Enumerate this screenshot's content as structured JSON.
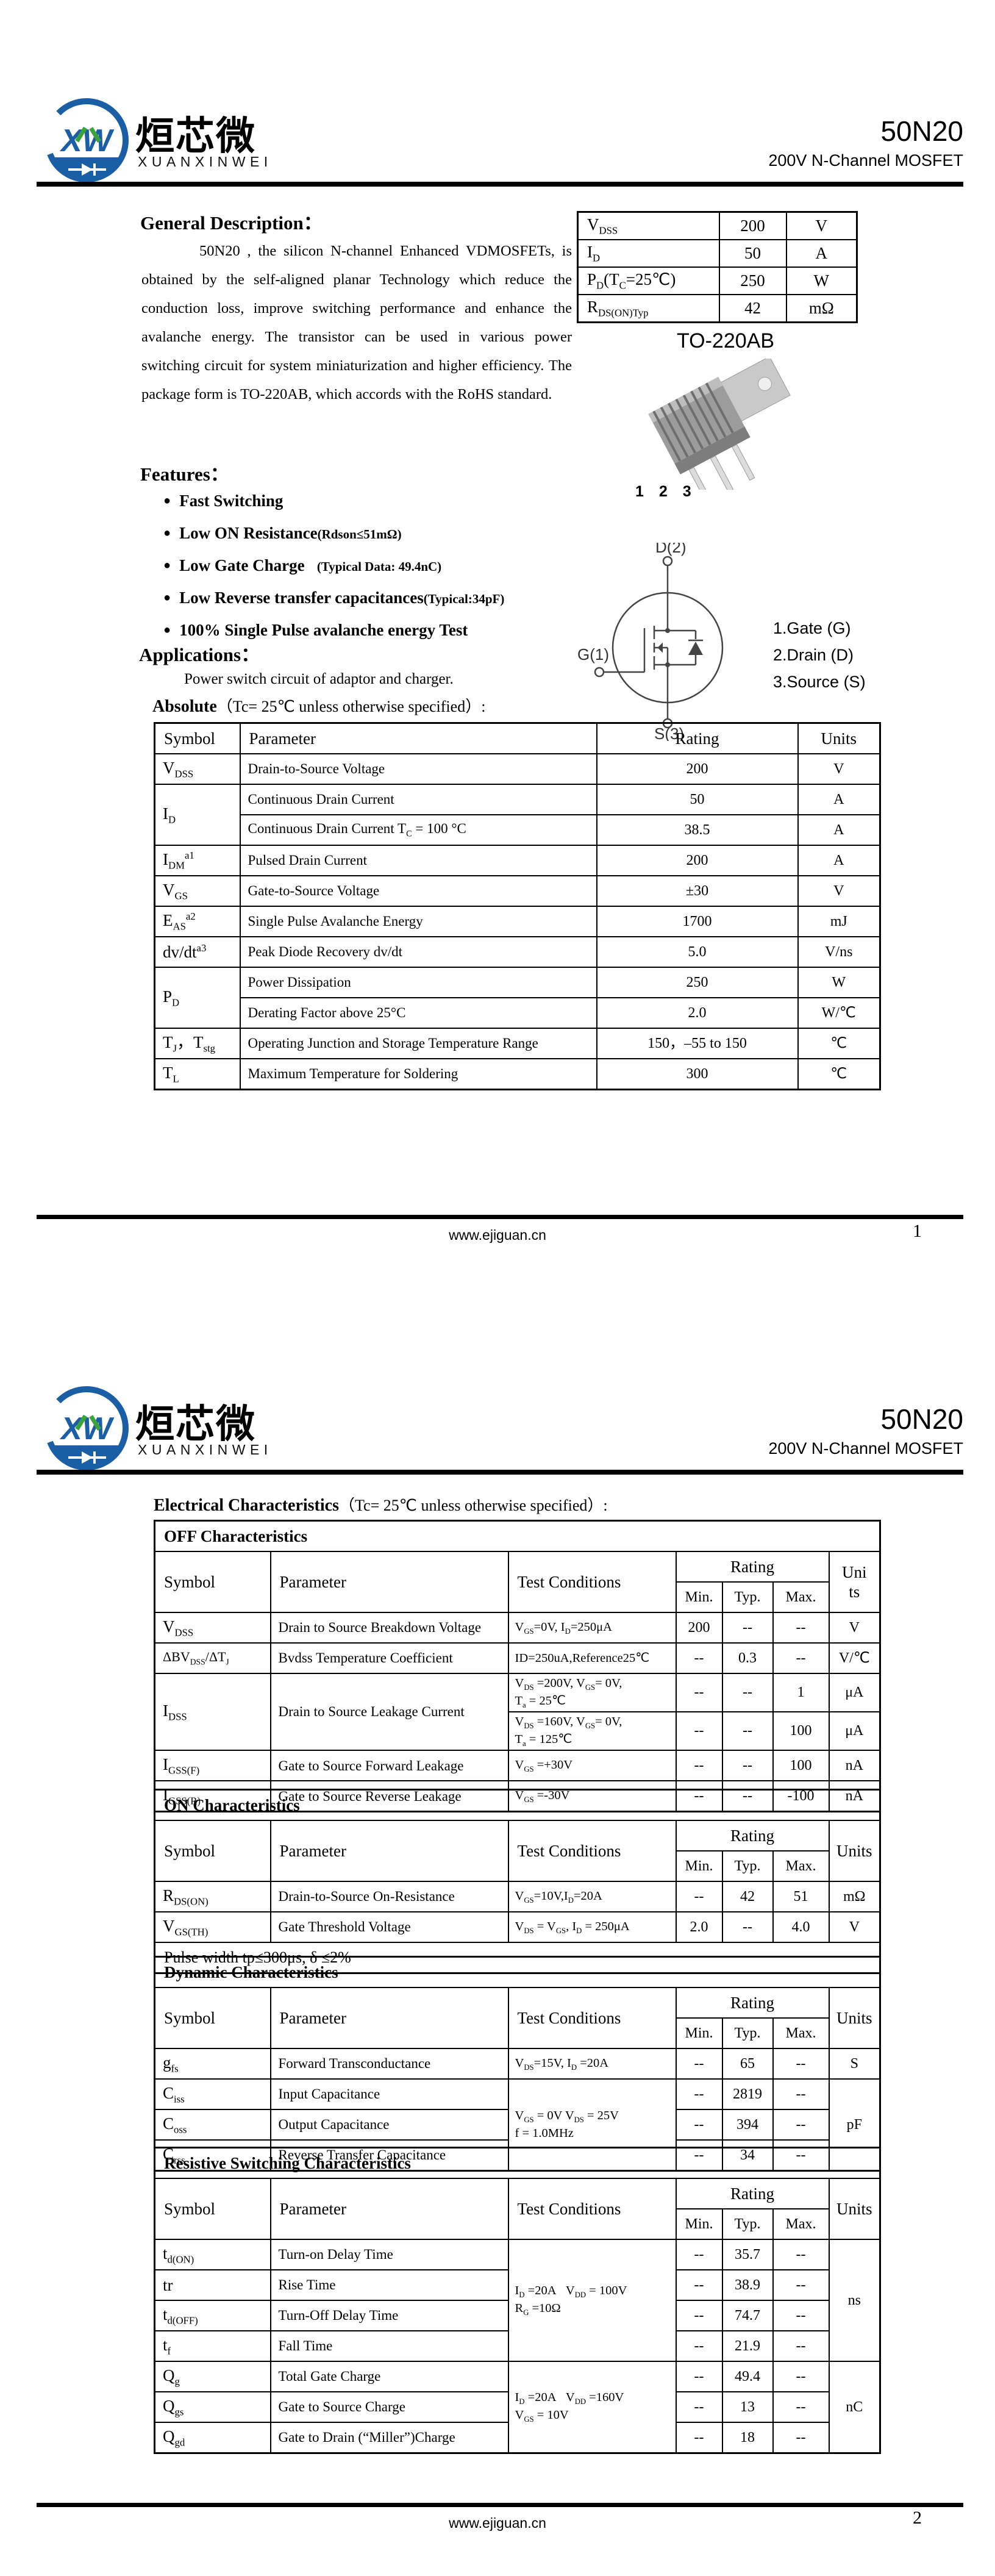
{
  "header": {
    "part": "50N20",
    "subtitle": "200V N-Channel MOSFET",
    "brand_zh": "烜芯微",
    "brand_en": "XUANXINWEI",
    "logo_monogram": "XW"
  },
  "footer": {
    "url": "www.ejiguan.cn",
    "page1": "1",
    "page2": "2"
  },
  "page1": {
    "general": {
      "title": "General Description：",
      "body": "50N20 , the silicon N-channel Enhanced VDMOSFETs, is obtained by the self-aligned planar Technology which reduce the conduction loss, improve switching performance and enhance the avalanche energy. The transistor can be used in various power switching circuit for system miniaturization and higher efficiency. The package form is TO-220AB, which accords with the RoHS standard."
    },
    "quick_specs": [
      [
        {
          "t": "V<sub>DSS</sub>",
          "c": "ql"
        },
        {
          "t": "200"
        },
        {
          "t": "V"
        }
      ],
      [
        {
          "t": "I<sub>D</sub>",
          "c": "ql"
        },
        {
          "t": "50"
        },
        {
          "t": "A"
        }
      ],
      [
        {
          "t": "P<sub>D</sub>(T<sub>C</sub>=25℃)",
          "c": "ql"
        },
        {
          "t": "250"
        },
        {
          "t": "W"
        }
      ],
      [
        {
          "t": "R<sub>DS(ON)Typ</sub>",
          "c": "ql"
        },
        {
          "t": "42"
        },
        {
          "t": "mΩ"
        }
      ]
    ],
    "features": {
      "title": "Features：",
      "items": [
        "Fast Switching",
        "Low ON Resistance<span class=\"fsm\">(Rdson≤51mΩ)</span>",
        "Low Gate Charge&nbsp;&nbsp;&nbsp;<span class=\"fsm\">(Typical Data: 49.4nC)</span>",
        "Low Reverse transfer capacitances<span class=\"fsm\">(Typical:34pF)</span>",
        "100% Single Pulse avalanche energy Test"
      ]
    },
    "applications": {
      "title": "Applications：",
      "body": "Power switch circuit of adaptor and charger."
    },
    "package": {
      "title": "TO-220AB",
      "pins": "1 2 3",
      "sym_d": "D(2)",
      "sym_g": "G(1)",
      "sym_s": "S(3)",
      "legend": [
        "1.Gate (G)",
        "2.Drain (D)",
        "3.Source (S)"
      ]
    },
    "absolute": {
      "title_html": "<b>Absolute</b>（Tc= 25℃  unless otherwise specified）:",
      "rows": [
        [
          {
            "t": "Symbol",
            "c": "hd hl"
          },
          {
            "t": "Parameter",
            "c": "hd hl"
          },
          {
            "t": "Rating",
            "c": "hd"
          },
          {
            "t": "Units",
            "c": "hd"
          }
        ],
        [
          {
            "t": "V<sub>DSS</sub>",
            "c": "sym"
          },
          {
            "t": "Drain-to-Source Voltage",
            "c": "par"
          },
          {
            "t": "200"
          },
          {
            "t": "V"
          }
        ],
        [
          {
            "t": "I<sub>D</sub>",
            "c": "sym",
            "rs": 2
          },
          {
            "t": "Continuous Drain Current",
            "c": "par"
          },
          {
            "t": "50"
          },
          {
            "t": "A"
          }
        ],
        [
          {
            "t": "Continuous Drain Current T<sub>C</sub> = 100 °C",
            "c": "par"
          },
          {
            "t": "38.5"
          },
          {
            "t": "A"
          }
        ],
        [
          {
            "t": "I<sub>DM</sub><sup>a1</sup>",
            "c": "sym"
          },
          {
            "t": "Pulsed Drain Current",
            "c": "par"
          },
          {
            "t": "200"
          },
          {
            "t": "A"
          }
        ],
        [
          {
            "t": "V<sub>GS</sub>",
            "c": "sym"
          },
          {
            "t": "Gate-to-Source Voltage",
            "c": "par"
          },
          {
            "t": "±30"
          },
          {
            "t": "V"
          }
        ],
        [
          {
            "t": "E<sub>AS</sub><sup>a2</sup>",
            "c": "sym"
          },
          {
            "t": "Single Pulse Avalanche Energy",
            "c": "par"
          },
          {
            "t": "1700"
          },
          {
            "t": "mJ"
          }
        ],
        [
          {
            "t": "dv/dt<sup>a3</sup>",
            "c": "sym"
          },
          {
            "t": "Peak Diode Recovery dv/dt",
            "c": "par"
          },
          {
            "t": "5.0"
          },
          {
            "t": "V/ns"
          }
        ],
        [
          {
            "t": "P<sub>D</sub>",
            "c": "sym",
            "rs": 2
          },
          {
            "t": "Power Dissipation",
            "c": "par"
          },
          {
            "t": "250"
          },
          {
            "t": "W"
          }
        ],
        [
          {
            "t": "Derating Factor above 25°C",
            "c": "par"
          },
          {
            "t": "2.0"
          },
          {
            "t": "W/℃"
          }
        ],
        [
          {
            "t": "T<sub>J</sub>，T<sub>stg</sub>",
            "c": "sym"
          },
          {
            "t": "Operating Junction and Storage Temperature Range",
            "c": "par"
          },
          {
            "t": "150，–55 to 150"
          },
          {
            "t": "℃"
          }
        ],
        [
          {
            "t": "T<sub>L</sub>",
            "c": "sym"
          },
          {
            "t": "Maximum Temperature for Soldering",
            "c": "par"
          },
          {
            "t": "300"
          },
          {
            "t": "℃"
          }
        ]
      ]
    }
  },
  "page2": {
    "elec_title_html": "<b>Electrical Characteristics</b>（Tc= 25℃  unless otherwise specified）:",
    "off": {
      "rows": [
        [
          {
            "t": "OFF Characteristics",
            "c": "ttl",
            "cs": 7
          }
        ],
        [
          {
            "t": "Symbol",
            "c": "hd hl",
            "rs": 2
          },
          {
            "t": "Parameter",
            "c": "hd hl",
            "rs": 2
          },
          {
            "t": "Test Conditions",
            "c": "hd hl",
            "rs": 2
          },
          {
            "t": "Rating",
            "c": "hd",
            "cs": 3
          },
          {
            "t": "Units",
            "c": "hd wrapU",
            "rs": 2
          }
        ],
        [
          {
            "t": "Min.",
            "c": "hd2"
          },
          {
            "t": "Typ.",
            "c": "hd2"
          },
          {
            "t": "Max.",
            "c": "hd2"
          }
        ],
        [
          {
            "t": "V<sub>DSS</sub>",
            "c": "sym"
          },
          {
            "t": "Drain to Source Breakdown Voltage",
            "c": "par"
          },
          {
            "t": "V<sub>GS</sub>=0V, I<sub>D</sub>=250μA",
            "c": "tc"
          },
          {
            "t": "200"
          },
          {
            "t": "--"
          },
          {
            "t": "--"
          },
          {
            "t": "V"
          }
        ],
        [
          {
            "t": "ΔBV<sub>DSS</sub>/ΔT<sub>J</sub>",
            "c": "sym sm"
          },
          {
            "t": "Bvdss Temperature Coefficient",
            "c": "par"
          },
          {
            "t": "ID=250uA,Reference25℃",
            "c": "tc"
          },
          {
            "t": "--"
          },
          {
            "t": "0.3"
          },
          {
            "t": "--"
          },
          {
            "t": "V/℃"
          }
        ],
        [
          {
            "t": "I<sub>DSS</sub>",
            "c": "sym",
            "rs": 2
          },
          {
            "t": "Drain to Source Leakage Current",
            "c": "par",
            "rs": 2
          },
          {
            "t": "V<sub>DS</sub> =200V, V<sub>GS</sub>= 0V,<br>T<sub>a</sub> = 25℃",
            "c": "tc"
          },
          {
            "t": "--"
          },
          {
            "t": "--"
          },
          {
            "t": "1"
          },
          {
            "t": "μA"
          }
        ],
        [
          {
            "t": "V<sub>DS</sub> =160V, V<sub>GS</sub>= 0V,<br>T<sub>a</sub> = 125℃",
            "c": "tc"
          },
          {
            "t": "--"
          },
          {
            "t": "--"
          },
          {
            "t": "100"
          },
          {
            "t": "μA"
          }
        ],
        [
          {
            "t": "I<sub>GSS(F)</sub>",
            "c": "sym"
          },
          {
            "t": "Gate to Source Forward Leakage",
            "c": "par"
          },
          {
            "t": "V<sub>GS</sub> =+30V",
            "c": "tc"
          },
          {
            "t": "--"
          },
          {
            "t": "--"
          },
          {
            "t": "100"
          },
          {
            "t": "nA"
          }
        ],
        [
          {
            "t": "I<sub>GSS(R)</sub>",
            "c": "sym"
          },
          {
            "t": "Gate to Source Reverse Leakage",
            "c": "par"
          },
          {
            "t": "V<sub>GS</sub> =-30V",
            "c": "tc"
          },
          {
            "t": "--"
          },
          {
            "t": "--"
          },
          {
            "t": "-100"
          },
          {
            "t": "nA"
          }
        ]
      ]
    },
    "on": {
      "rows": [
        [
          {
            "t": "ON Characteristics",
            "c": "ttl",
            "cs": 7
          }
        ],
        [
          {
            "t": "Symbol",
            "c": "hd hl",
            "rs": 2
          },
          {
            "t": "Parameter",
            "c": "hd hl",
            "rs": 2
          },
          {
            "t": "Test Conditions",
            "c": "hd hl",
            "rs": 2
          },
          {
            "t": "Rating",
            "c": "hd",
            "cs": 3
          },
          {
            "t": "Units",
            "c": "hd",
            "rs": 2
          }
        ],
        [
          {
            "t": "Min.",
            "c": "hd2"
          },
          {
            "t": "Typ.",
            "c": "hd2"
          },
          {
            "t": "Max.",
            "c": "hd2"
          }
        ],
        [
          {
            "t": "R<sub>DS(ON)</sub>",
            "c": "sym"
          },
          {
            "t": "Drain-to-Source On-Resistance",
            "c": "par"
          },
          {
            "t": "V<sub>GS</sub>=10V,I<sub>D</sub>=20A",
            "c": "tc"
          },
          {
            "t": "--"
          },
          {
            "t": "42"
          },
          {
            "t": "51"
          },
          {
            "t": "mΩ"
          }
        ],
        [
          {
            "t": "V<sub>GS(TH)</sub>",
            "c": "sym"
          },
          {
            "t": "Gate Threshold Voltage",
            "c": "par"
          },
          {
            "t": "V<sub>DS</sub> = V<sub>GS</sub>, I<sub>D</sub> = 250μA",
            "c": "tc"
          },
          {
            "t": "2.0"
          },
          {
            "t": "--"
          },
          {
            "t": "4.0"
          },
          {
            "t": "V"
          }
        ],
        [
          {
            "t": "Pulse width tp≤300μs, δ ≤2%",
            "c": "note",
            "cs": 7
          }
        ]
      ]
    },
    "dynamic": {
      "rows": [
        [
          {
            "t": "Dynamic Characteristics",
            "c": "ttl",
            "cs": 7
          }
        ],
        [
          {
            "t": "Symbol",
            "c": "hd hl",
            "rs": 2
          },
          {
            "t": "Parameter",
            "c": "hd hl",
            "rs": 2
          },
          {
            "t": "Test Conditions",
            "c": "hd hl",
            "rs": 2
          },
          {
            "t": "Rating",
            "c": "hd",
            "cs": 3
          },
          {
            "t": "Units",
            "c": "hd",
            "rs": 2
          }
        ],
        [
          {
            "t": "Min.",
            "c": "hd2"
          },
          {
            "t": "Typ.",
            "c": "hd2"
          },
          {
            "t": "Max.",
            "c": "hd2"
          }
        ],
        [
          {
            "t": "g<sub>fs</sub>",
            "c": "sym"
          },
          {
            "t": "Forward Transconductance",
            "c": "par"
          },
          {
            "t": "V<sub>DS</sub>=15V, I<sub>D</sub> =20A",
            "c": "tc"
          },
          {
            "t": "--"
          },
          {
            "t": "65"
          },
          {
            "t": "--"
          },
          {
            "t": "S"
          }
        ],
        [
          {
            "t": "C<sub>iss</sub>",
            "c": "sym"
          },
          {
            "t": "Input Capacitance",
            "c": "par"
          },
          {
            "t": "V<sub>GS</sub> = 0V V<sub>DS</sub> = 25V<br>f = 1.0MHz",
            "c": "tc",
            "rs": 3
          },
          {
            "t": "--"
          },
          {
            "t": "2819"
          },
          {
            "t": "--"
          },
          {
            "t": "pF",
            "rs": 3
          }
        ],
        [
          {
            "t": "C<sub>oss</sub>",
            "c": "sym"
          },
          {
            "t": "Output Capacitance",
            "c": "par"
          },
          {
            "t": "--"
          },
          {
            "t": "394"
          },
          {
            "t": "--"
          }
        ],
        [
          {
            "t": "C<sub>rss</sub>",
            "c": "sym"
          },
          {
            "t": "Reverse Transfer Capacitance",
            "c": "par"
          },
          {
            "t": "--"
          },
          {
            "t": "34"
          },
          {
            "t": "--"
          }
        ]
      ]
    },
    "resistive": {
      "rows": [
        [
          {
            "t": "Resistive Switching Characteristics",
            "c": "ttl",
            "cs": 7
          }
        ],
        [
          {
            "t": "Symbol",
            "c": "hd hl",
            "rs": 2
          },
          {
            "t": "Parameter",
            "c": "hd hl",
            "rs": 2
          },
          {
            "t": "Test Conditions",
            "c": "hd hl",
            "rs": 2
          },
          {
            "t": "Rating",
            "c": "hd",
            "cs": 3
          },
          {
            "t": "Units",
            "c": "hd",
            "rs": 2
          }
        ],
        [
          {
            "t": "Min.",
            "c": "hd2"
          },
          {
            "t": "Typ.",
            "c": "hd2"
          },
          {
            "t": "Max.",
            "c": "hd2"
          }
        ],
        [
          {
            "t": "t<sub>d(ON)</sub>",
            "c": "sym"
          },
          {
            "t": "Turn-on Delay Time",
            "c": "par"
          },
          {
            "t": "I<sub>D</sub> =20A&nbsp;&nbsp;&nbsp;V<sub>DD</sub> = 100V<br>R<sub>G</sub> =10Ω",
            "c": "tc",
            "rs": 4
          },
          {
            "t": "--"
          },
          {
            "t": "35.7"
          },
          {
            "t": "--"
          },
          {
            "t": "ns",
            "rs": 4
          }
        ],
        [
          {
            "t": "tr",
            "c": "sym"
          },
          {
            "t": "Rise Time",
            "c": "par"
          },
          {
            "t": "--"
          },
          {
            "t": "38.9"
          },
          {
            "t": "--"
          }
        ],
        [
          {
            "t": "t<sub>d(OFF)</sub>",
            "c": "sym"
          },
          {
            "t": "Turn-Off Delay Time",
            "c": "par"
          },
          {
            "t": "--"
          },
          {
            "t": "74.7"
          },
          {
            "t": "--"
          }
        ],
        [
          {
            "t": "t<sub>f</sub>",
            "c": "sym"
          },
          {
            "t": "Fall Time",
            "c": "par"
          },
          {
            "t": "--"
          },
          {
            "t": "21.9"
          },
          {
            "t": "--"
          }
        ],
        [
          {
            "t": "Q<sub>g</sub>",
            "c": "sym"
          },
          {
            "t": "Total Gate Charge",
            "c": "par"
          },
          {
            "t": "I<sub>D</sub> =20A&nbsp;&nbsp;&nbsp;V<sub>DD</sub> =160V<br>V<sub>GS</sub> = 10V",
            "c": "tc",
            "rs": 3
          },
          {
            "t": "--"
          },
          {
            "t": "49.4"
          },
          {
            "t": "--"
          },
          {
            "t": "nC",
            "rs": 3
          }
        ],
        [
          {
            "t": "Q<sub>gs</sub>",
            "c": "sym"
          },
          {
            "t": "Gate to Source Charge",
            "c": "par"
          },
          {
            "t": "--"
          },
          {
            "t": "13"
          },
          {
            "t": "--"
          }
        ],
        [
          {
            "t": "Q<sub>gd</sub>",
            "c": "sym"
          },
          {
            "t": "Gate to Drain (“Miller”)Charge",
            "c": "par"
          },
          {
            "t": "--"
          },
          {
            "t": "18"
          },
          {
            "t": "--"
          }
        ]
      ]
    }
  }
}
